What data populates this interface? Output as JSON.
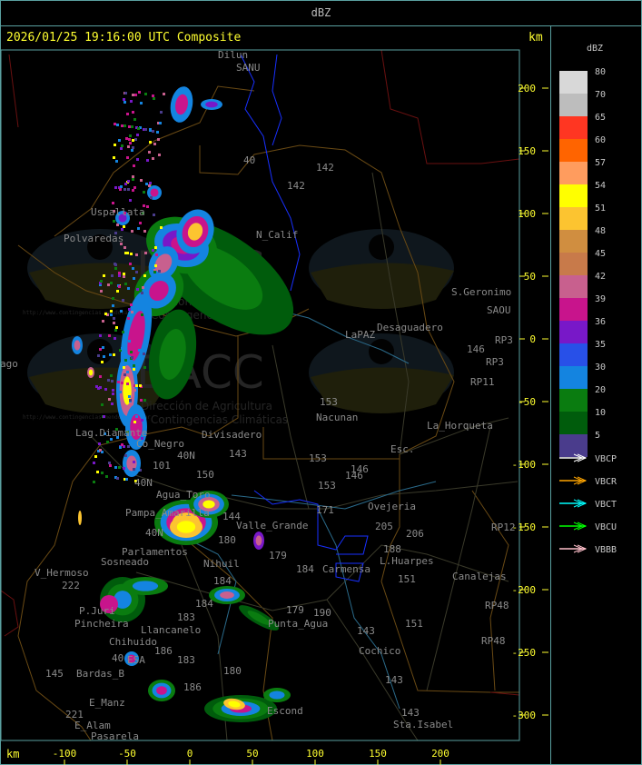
{
  "header": {
    "title": "dBZ"
  },
  "map": {
    "subtitle": "2026/01/25 19:16:00 UTC Composite",
    "unit_top": "km",
    "unit_bottom": "km",
    "x_ticks": [
      "-100",
      "-50",
      "0",
      "50",
      "100",
      "150",
      "200"
    ],
    "y_ticks": [
      "200",
      "150",
      "100",
      "50",
      "0",
      "-50",
      "-100",
      "-150",
      "-200",
      "-250",
      "-300"
    ],
    "watermark": {
      "brand": "DACC",
      "line1": "Dirección de Agricultura",
      "line2": "y Contingencias Climáticas",
      "url": "http://www.contingencias.mendoza.gov.ar"
    },
    "places": [
      "Dilun",
      "SANU",
      "40",
      "142",
      "142",
      "Uspallata",
      "Polvaredas",
      "N_Calif",
      "S.Geronimo",
      "SAOU",
      "Desaguadero",
      "LaPAZ",
      "146",
      "RP3",
      "RP3",
      "RP11",
      "ago",
      "153",
      "Nacunan",
      "La_Horqueta",
      "Esc.",
      "153",
      "146",
      "Lag.Diamante",
      "Co_Negro",
      "Divisadero",
      "40N",
      "143",
      "101",
      "150",
      "40N",
      "Agua_Toro",
      "Pampa_Amarilla",
      "40N",
      "Parlamentos",
      "Sosneado",
      "V_Hermoso",
      "222",
      "Nihuil",
      "144",
      "Valle_Grande",
      "180",
      "179",
      "184",
      "Carmensa",
      "188",
      "L.Huarpes",
      "Ovejeria",
      "205",
      "206",
      "171",
      "153",
      "146",
      "RP12",
      "Canalejas",
      "151",
      "151",
      "RP48",
      "RP48",
      "Punta_Agua",
      "179",
      "190",
      "Cochico",
      "143",
      "143",
      "143",
      "Sta.Isabel",
      "P.Juri",
      "Pincheira",
      "Llancanelo",
      "Chihuido",
      "186",
      "ESA",
      "183",
      "Bardas_B",
      "145",
      "180",
      "186",
      "E_Manz",
      "221",
      "E_Alam",
      "Pasarela",
      "Escond",
      "184",
      "184",
      "183",
      "40"
    ]
  },
  "legend": {
    "title": "dBZ",
    "scale": [
      {
        "label": "80",
        "color": "#d8d8d8"
      },
      {
        "label": "70",
        "color": "#bdbdbd"
      },
      {
        "label": "65",
        "color": "#ff3622"
      },
      {
        "label": "60",
        "color": "#ff6400"
      },
      {
        "label": "57",
        "color": "#ff9c5e"
      },
      {
        "label": "54",
        "color": "#ffff00"
      },
      {
        "label": "51",
        "color": "#fcc430"
      },
      {
        "label": "48",
        "color": "#d08e40"
      },
      {
        "label": "45",
        "color": "#c87a4a"
      },
      {
        "label": "42",
        "color": "#c8608e"
      },
      {
        "label": "39",
        "color": "#c8148c"
      },
      {
        "label": "36",
        "color": "#7818c8"
      },
      {
        "label": "35",
        "color": "#2850e8"
      },
      {
        "label": "30",
        "color": "#1484e0"
      },
      {
        "label": "20",
        "color": "#0a7c10"
      },
      {
        "label": "10",
        "color": "#005c0c"
      },
      {
        "label": "5",
        "color": "#4a3c8c"
      }
    ],
    "radars": [
      {
        "label": "VBCP",
        "color": "#ffffff"
      },
      {
        "label": "VBCR",
        "color": "#ffa500"
      },
      {
        "label": "VBCT",
        "color": "#00ffff"
      },
      {
        "label": "VBCU",
        "color": "#00ff00"
      },
      {
        "label": "VBBB",
        "color": "#ffc0cb"
      }
    ]
  }
}
